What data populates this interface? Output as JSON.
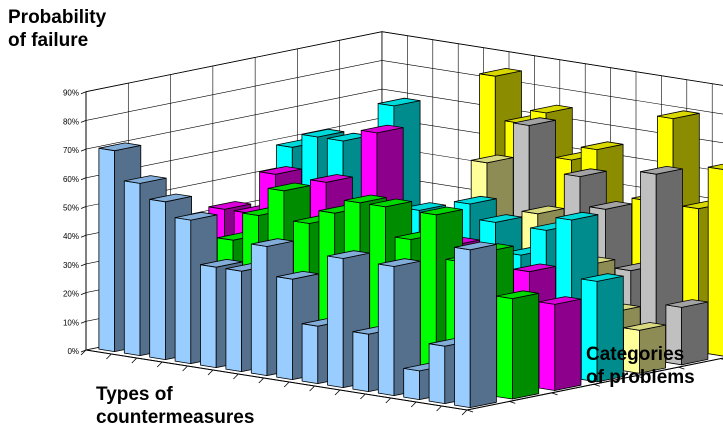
{
  "chart_data": {
    "type": "bar",
    "variant": "3d-column",
    "zlabel": "Probability\nof failure",
    "xlabel": "Types of\ncountermeasures",
    "ylabel": "Categories\nof problems",
    "zlim": [
      0,
      90
    ],
    "zticks": [
      "0%",
      "10%",
      "20%",
      "30%",
      "40%",
      "50%",
      "60%",
      "70%",
      "80%",
      "90%"
    ],
    "grid": true,
    "legend": false,
    "series_colors": [
      "#ffff00",
      "#c0c0c0",
      "#ffff99",
      "#00ffff",
      "#ff00ff",
      "#00ff00",
      "#99ccff"
    ],
    "series": [
      {
        "values": [
          null,
          null,
          null,
          null,
          null,
          85,
          70,
          75,
          60,
          65,
          40,
          50,
          80,
          50,
          65
        ]
      },
      {
        "values": [
          null,
          null,
          null,
          null,
          null,
          null,
          null,
          null,
          75,
          null,
          60,
          50,
          30,
          65,
          20
        ]
      },
      {
        "values": [
          null,
          null,
          null,
          null,
          null,
          null,
          null,
          null,
          65,
          45,
          50,
          30,
          35,
          20,
          15
        ]
      },
      {
        "values": [
          null,
          null,
          65,
          70,
          70,
          40,
          85,
          50,
          40,
          55,
          50,
          40,
          50,
          55,
          35
        ]
      },
      {
        "values": [
          null,
          45,
          45,
          60,
          40,
          60,
          40,
          80,
          40,
          40,
          45,
          40,
          35,
          40,
          30
        ]
      },
      {
        "values": [
          null,
          40,
          35,
          40,
          50,
          60,
          50,
          55,
          60,
          60,
          50,
          60,
          45,
          50,
          35
        ]
      },
      {
        "values": [
          70,
          60,
          55,
          50,
          35,
          35,
          45,
          35,
          20,
          45,
          20,
          45,
          10,
          20,
          55
        ]
      }
    ]
  }
}
